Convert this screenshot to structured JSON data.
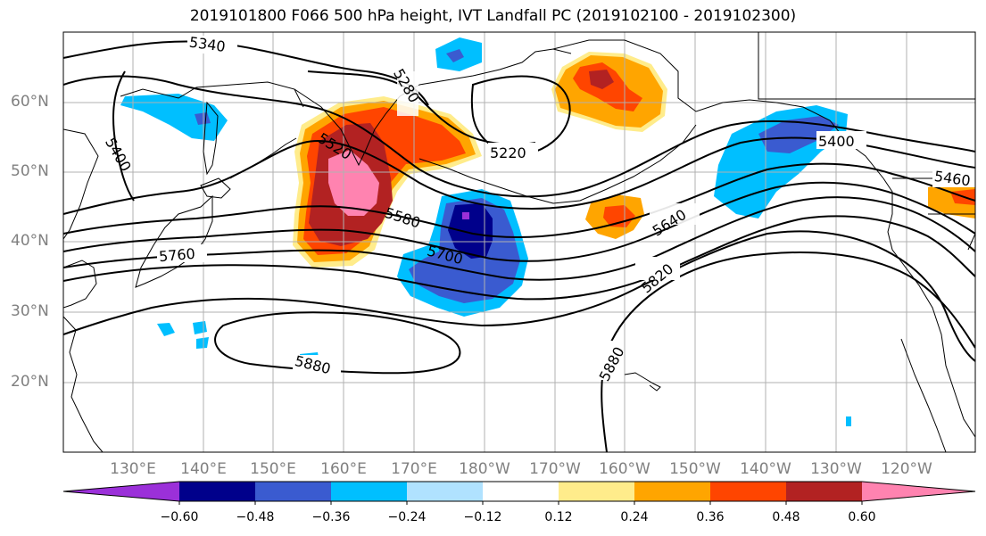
{
  "title": "2019101800 F066 500 hPa height, IVT Landfall PC (2019102100 - 2019102300)",
  "lat_labels": [
    "60°N",
    "50°N",
    "40°N",
    "30°N",
    "20°N"
  ],
  "lon_labels": [
    "130°E",
    "140°E",
    "150°E",
    "160°E",
    "170°E",
    "180°W",
    "170°W",
    "160°W",
    "150°W",
    "140°W",
    "130°W",
    "120°W"
  ],
  "contour_labels": [
    "5340",
    "5280",
    "5400",
    "5520",
    "5220",
    "5580",
    "5700",
    "5760",
    "5640",
    "5820",
    "5880",
    "5880",
    "5400",
    "5460"
  ],
  "colorbar": {
    "ticks": [
      "−0.60",
      "−0.48",
      "−0.36",
      "−0.24",
      "−0.12",
      "0.12",
      "0.24",
      "0.36",
      "0.48",
      "0.60"
    ],
    "colors": [
      "#9b30d9",
      "#00008b",
      "#3a5bd0",
      "#00bfff",
      "#b0e2ff",
      "#ffffff",
      "#ffec8b",
      "#ffa500",
      "#ff4500",
      "#b22222",
      "#ff83b0"
    ]
  },
  "colors": {
    "purple": "#9b30d9",
    "navy": "#00008b",
    "blue": "#3a5bd0",
    "cyan": "#00bfff",
    "lightblue": "#b0e2ff",
    "yellow": "#ffec8b",
    "orange": "#ffa500",
    "redorange": "#ff4500",
    "firebrick": "#b22222",
    "pink": "#ff83b0",
    "grid": "#b0b0b0",
    "label": "#808080"
  }
}
